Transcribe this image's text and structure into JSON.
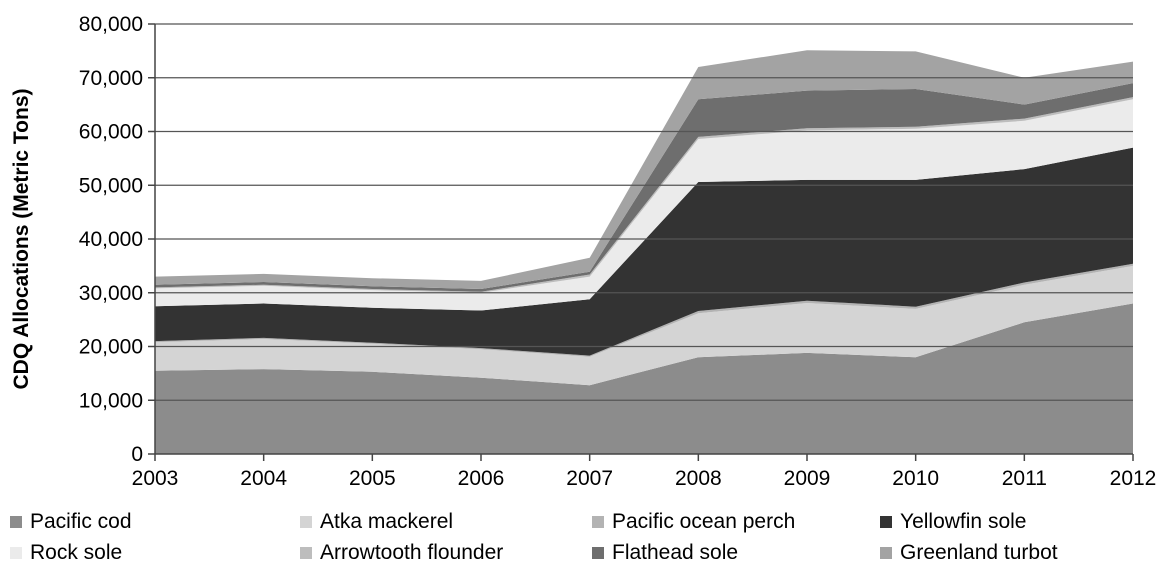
{
  "chart_data": {
    "type": "area",
    "stacked": true,
    "title": "",
    "xlabel": "",
    "ylabel": "CDQ Allocations (Metric Tons)",
    "x": [
      "2003",
      "2004",
      "2005",
      "2006",
      "2007",
      "2008",
      "2009",
      "2010",
      "2011",
      "2012"
    ],
    "ylim": [
      0,
      80000
    ],
    "yticks": [
      0,
      10000,
      20000,
      30000,
      40000,
      50000,
      60000,
      70000,
      80000
    ],
    "ytick_labels": [
      "0",
      "10,000",
      "20,000",
      "30,000",
      "40,000",
      "50,000",
      "60,000",
      "70,000",
      "80,000"
    ],
    "grid": "horizontal",
    "legend_position": "bottom",
    "series": [
      {
        "name": "Pacific cod",
        "color": "#8c8c8c",
        "values": [
          15500,
          15800,
          15300,
          14200,
          12800,
          18000,
          18800,
          18000,
          24500,
          28000
        ]
      },
      {
        "name": "Atka mackerel",
        "color": "#d4d4d4",
        "values": [
          5300,
          5600,
          5200,
          5300,
          5300,
          8200,
          9300,
          9000,
          7000,
          7000
        ]
      },
      {
        "name": "Pacific ocean perch",
        "color": "#b3b3b3",
        "values": [
          200,
          200,
          200,
          200,
          200,
          400,
          400,
          400,
          400,
          400
        ]
      },
      {
        "name": "Yellowfin sole",
        "color": "#333333",
        "values": [
          6500,
          6400,
          6500,
          7000,
          10500,
          24000,
          22500,
          23600,
          21100,
          21600
        ]
      },
      {
        "name": "Rock sole",
        "color": "#ebebeb",
        "values": [
          3300,
          3300,
          3300,
          3300,
          4200,
          8000,
          9200,
          9500,
          9000,
          9000
        ]
      },
      {
        "name": "Arrowtooth flounder",
        "color": "#bdbdbd",
        "values": [
          200,
          200,
          200,
          200,
          400,
          400,
          400,
          400,
          400,
          400
        ]
      },
      {
        "name": "Flathead sole",
        "color": "#6e6e6e",
        "values": [
          500,
          500,
          500,
          500,
          500,
          7000,
          7000,
          7000,
          2600,
          2600
        ]
      },
      {
        "name": "Greenland turbot",
        "color": "#a3a3a3",
        "values": [
          1500,
          1500,
          1500,
          1500,
          2600,
          6000,
          7500,
          7000,
          5000,
          4000
        ]
      }
    ]
  }
}
